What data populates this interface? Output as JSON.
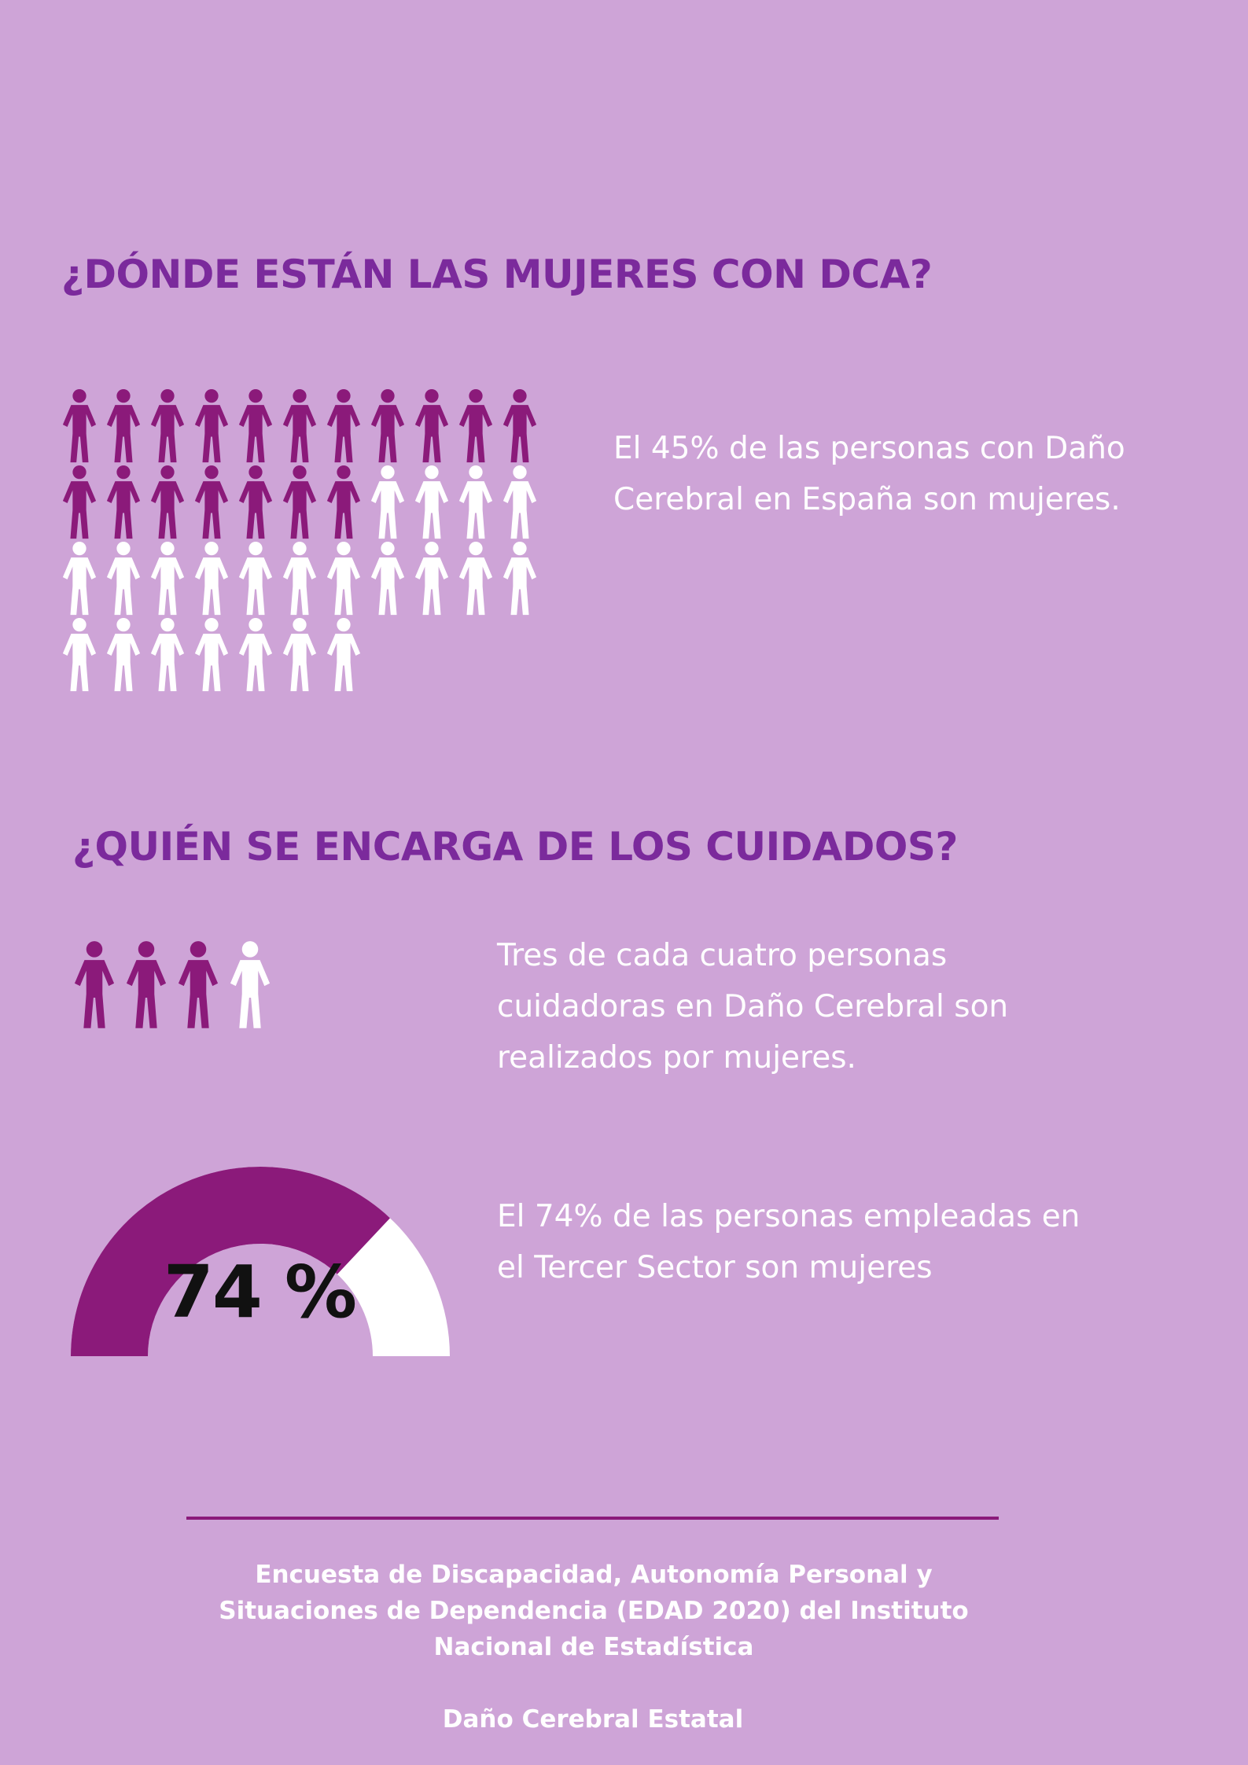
{
  "colors": {
    "background": "#cea4d7",
    "heading": "#7b2a9c",
    "accent": "#8b1a7a",
    "light": "#ffffff",
    "gauge_label": "#111111"
  },
  "section1": {
    "title": "¿DÓNDE ESTÁN LAS MUJERES CON DCA?",
    "stat_text": "El 45% de las personas con Daño Cerebral en España son mujeres.",
    "pictogram": {
      "icon": "person-icon",
      "total": 40,
      "highlighted": 18,
      "per_row": 11
    }
  },
  "section2": {
    "title": "¿QUIÉN SE ENCARGA DE LOS CUIDADOS?",
    "stat_text": "Tres de cada cuatro personas cuidadoras en Daño Cerebral son realizados por mujeres.",
    "pictogram": {
      "icon": "person-icon",
      "total": 4,
      "highlighted": 3,
      "per_row": 4
    }
  },
  "section3": {
    "gauge_value": 74,
    "gauge_label": "74 %",
    "stat_text": "El 74% de las personas empleadas en el Tercer Sector son mujeres"
  },
  "footer": {
    "source": "Encuesta de Discapacidad, Autonomía Personal y Situaciones de Dependencia (EDAD 2020) del Instituto Nacional de Estadística",
    "organization": "Daño Cerebral Estatal"
  }
}
